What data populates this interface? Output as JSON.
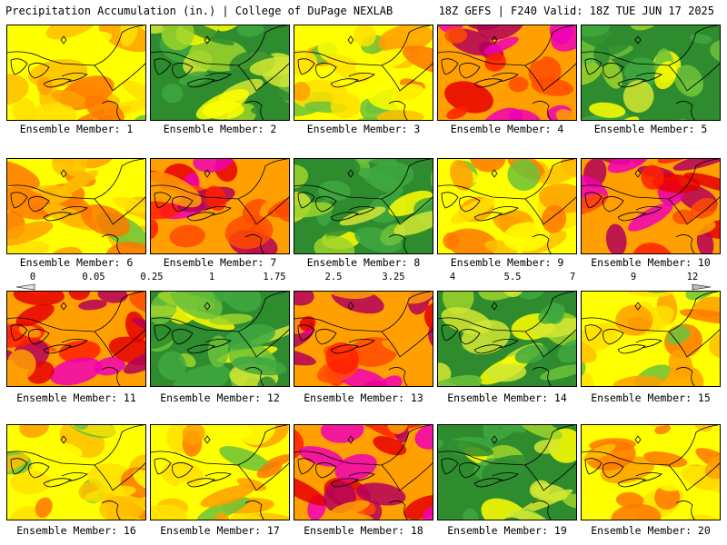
{
  "header": {
    "left": "Precipitation Accumulation (in.) | College of DuPage NEXLAB",
    "right": "18Z GEFS | F240 Valid: 18Z TUE JUN 17 2025"
  },
  "panels": [
    {
      "caption": "Ensemble Member: 1",
      "theme": "y"
    },
    {
      "caption": "Ensemble Member: 2",
      "theme": "g"
    },
    {
      "caption": "Ensemble Member: 3",
      "theme": "y"
    },
    {
      "caption": "Ensemble Member: 4",
      "theme": "r"
    },
    {
      "caption": "Ensemble Member: 5",
      "theme": "g"
    },
    {
      "caption": "Ensemble Member: 6",
      "theme": "y"
    },
    {
      "caption": "Ensemble Member: 7",
      "theme": "r"
    },
    {
      "caption": "Ensemble Member: 8",
      "theme": "g"
    },
    {
      "caption": "Ensemble Member: 9",
      "theme": "y"
    },
    {
      "caption": "Ensemble Member: 10",
      "theme": "r"
    },
    {
      "caption": "Ensemble Member: 11",
      "theme": "r"
    },
    {
      "caption": "Ensemble Member: 12",
      "theme": "g"
    },
    {
      "caption": "Ensemble Member: 13",
      "theme": "r"
    },
    {
      "caption": "Ensemble Member: 14",
      "theme": "g"
    },
    {
      "caption": "Ensemble Member: 15",
      "theme": "y"
    },
    {
      "caption": "Ensemble Member: 16",
      "theme": "y"
    },
    {
      "caption": "Ensemble Member: 17",
      "theme": "y"
    },
    {
      "caption": "Ensemble Member: 18",
      "theme": "r"
    },
    {
      "caption": "Ensemble Member: 19",
      "theme": "g"
    },
    {
      "caption": "Ensemble Member: 20",
      "theme": "y"
    }
  ],
  "colorbar": {
    "labels": [
      "0",
      "0.05",
      "0.25",
      "1",
      "1.75",
      "2.5",
      "3.25",
      "4",
      "5.5",
      "7",
      "9",
      "12"
    ],
    "colors": [
      "#e6e6e6",
      "#c8c8c8",
      "#a0a0a0",
      "#6e6e6e",
      "#3c7a3c",
      "#1e8c1e",
      "#2fa52f",
      "#6cc23a",
      "#9cd42a",
      "#d2e832",
      "#ffff00",
      "#ffe000",
      "#ffc000",
      "#ffa000",
      "#ff7800",
      "#ff4b00",
      "#ff1e00",
      "#e60000",
      "#c80000",
      "#a00000",
      "#b4005a",
      "#d2007a",
      "#f000b4",
      "#ff3cff",
      "#c85aff",
      "#8c78ff",
      "#5aa0ff",
      "#32d2ff",
      "#00ffff",
      "#3cc8c8",
      "#64a0a0",
      "#7c7c7c",
      "#9a9a9a",
      "#bcbcbc"
    ]
  },
  "map_colors": {
    "g": [
      "#2e8b2e",
      "#3fa83f",
      "#6cc23a",
      "#9cd42a",
      "#d2e832",
      "#ffff00"
    ],
    "y": [
      "#ffff00",
      "#ffe000",
      "#ffc000",
      "#ffa000",
      "#ff7800",
      "#6cc23a"
    ],
    "r": [
      "#ffa000",
      "#ff4b00",
      "#ff1e00",
      "#e60000",
      "#b4005a",
      "#f000b4"
    ]
  }
}
